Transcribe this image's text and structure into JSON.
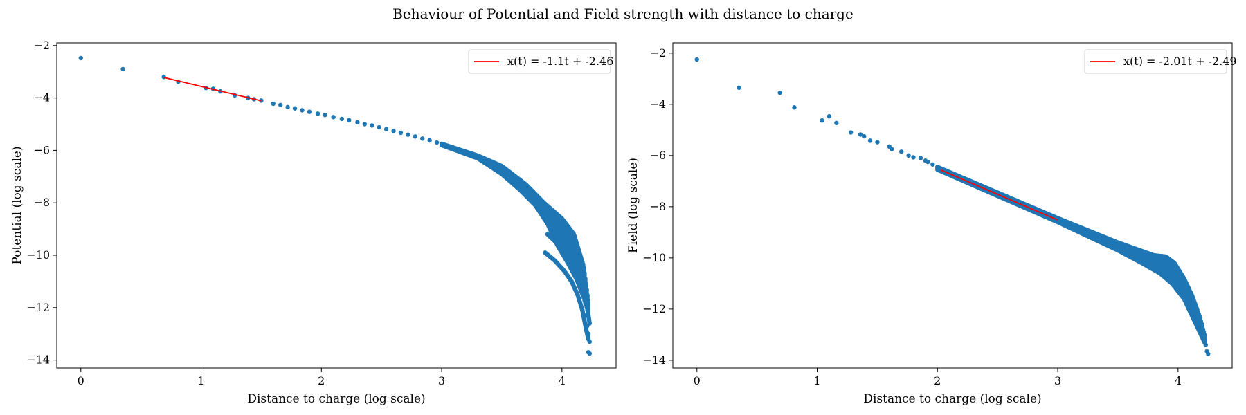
{
  "figure": {
    "suptitle": "Behaviour of Potential and Field strength with distance to charge"
  },
  "chart_data": [
    {
      "type": "scatter",
      "xlabel": "Distance to charge (log scale)",
      "ylabel": "Potential (log scale)",
      "xlim": [
        -0.2,
        4.45
      ],
      "ylim": [
        -14.3,
        -1.9
      ],
      "xticks": [
        0,
        1,
        2,
        3,
        4
      ],
      "yticks": [
        -14,
        -12,
        -10,
        -8,
        -6,
        -4,
        -2
      ],
      "legend_position": "top-right",
      "point_color": "#1f77b4",
      "fit_color": "#ff0000",
      "isolated_points": [
        [
          0,
          -2.48
        ],
        [
          0.35,
          -2.9
        ],
        [
          0.69,
          -3.2
        ],
        [
          0.81,
          -3.38
        ],
        [
          1.04,
          -3.62
        ],
        [
          1.1,
          -3.65
        ],
        [
          1.16,
          -3.75
        ],
        [
          1.28,
          -3.9
        ],
        [
          1.39,
          -4.0
        ],
        [
          1.44,
          -4.05
        ],
        [
          1.5,
          -4.1
        ],
        [
          1.6,
          -4.22
        ],
        [
          1.66,
          -4.27
        ],
        [
          1.72,
          -4.35
        ],
        [
          1.78,
          -4.4
        ],
        [
          1.84,
          -4.47
        ],
        [
          1.9,
          -4.53
        ],
        [
          1.97,
          -4.6
        ],
        [
          2.03,
          -4.65
        ],
        [
          2.1,
          -4.73
        ],
        [
          2.17,
          -4.8
        ],
        [
          2.23,
          -4.85
        ],
        [
          2.3,
          -4.93
        ],
        [
          2.36,
          -5.0
        ],
        [
          2.42,
          -5.05
        ],
        [
          2.48,
          -5.12
        ],
        [
          2.54,
          -5.19
        ],
        [
          2.6,
          -5.26
        ],
        [
          2.66,
          -5.33
        ],
        [
          2.72,
          -5.4
        ],
        [
          2.78,
          -5.47
        ],
        [
          2.84,
          -5.55
        ],
        [
          2.9,
          -5.62
        ],
        [
          2.96,
          -5.7
        ],
        [
          3.0,
          -5.75
        ]
      ],
      "main_band": {
        "upper": [
          [
            3.0,
            -5.75
          ],
          [
            3.3,
            -6.2
          ],
          [
            3.5,
            -6.6
          ],
          [
            3.7,
            -7.3
          ],
          [
            3.85,
            -8.0
          ],
          [
            4.0,
            -8.6
          ],
          [
            4.1,
            -9.2
          ],
          [
            4.18,
            -10.4
          ],
          [
            4.22,
            -11.8
          ]
        ],
        "lower": [
          [
            3.0,
            -5.8
          ],
          [
            3.3,
            -6.3
          ],
          [
            3.5,
            -6.9
          ],
          [
            3.65,
            -7.5
          ],
          [
            3.78,
            -8.1
          ],
          [
            3.88,
            -8.8
          ],
          [
            3.96,
            -9.6
          ],
          [
            4.05,
            -10.3
          ],
          [
            4.12,
            -10.9
          ],
          [
            4.18,
            -11.6
          ],
          [
            4.22,
            -12.2
          ]
        ]
      },
      "branches": [
        [
          [
            3.88,
            -9.2
          ],
          [
            3.95,
            -9.5
          ],
          [
            4.02,
            -9.8
          ],
          [
            4.08,
            -10.2
          ],
          [
            4.14,
            -10.7
          ],
          [
            4.18,
            -11.3
          ],
          [
            4.21,
            -12.0
          ],
          [
            4.23,
            -12.6
          ]
        ],
        [
          [
            3.86,
            -9.9
          ],
          [
            3.94,
            -10.2
          ],
          [
            4.02,
            -10.6
          ],
          [
            4.08,
            -11.0
          ],
          [
            4.13,
            -11.5
          ],
          [
            4.17,
            -12.1
          ],
          [
            4.2,
            -12.8
          ],
          [
            4.22,
            -13.2
          ]
        ]
      ],
      "tail_points": [
        [
          4.2,
          -12.3
        ],
        [
          4.21,
          -12.7
        ],
        [
          4.22,
          -13.0
        ],
        [
          4.23,
          -13.3
        ],
        [
          4.22,
          -13.7
        ],
        [
          4.23,
          -13.75
        ]
      ],
      "fit": {
        "label": "x(t) = -1.1t + -2.46",
        "slope": -1.1,
        "intercept": -2.46,
        "x_range": [
          0.69,
          1.5
        ]
      }
    },
    {
      "type": "scatter",
      "xlabel": "Distance to charge (log scale)",
      "ylabel": "Field (log scale)",
      "xlim": [
        -0.2,
        4.45
      ],
      "ylim": [
        -14.3,
        -1.6
      ],
      "xticks": [
        0,
        1,
        2,
        3,
        4
      ],
      "yticks": [
        -14,
        -12,
        -10,
        -8,
        -6,
        -4,
        -2
      ],
      "legend_position": "top-right",
      "point_color": "#1f77b4",
      "fit_color": "#ff0000",
      "isolated_points": [
        [
          0,
          -2.25
        ],
        [
          0.35,
          -3.35
        ],
        [
          0.69,
          -3.55
        ],
        [
          0.81,
          -4.12
        ],
        [
          1.04,
          -4.63
        ],
        [
          1.1,
          -4.47
        ],
        [
          1.16,
          -4.73
        ],
        [
          1.28,
          -5.1
        ],
        [
          1.36,
          -5.18
        ],
        [
          1.39,
          -5.25
        ],
        [
          1.44,
          -5.42
        ],
        [
          1.5,
          -5.48
        ],
        [
          1.6,
          -5.65
        ],
        [
          1.62,
          -5.75
        ],
        [
          1.7,
          -5.85
        ],
        [
          1.76,
          -6.0
        ],
        [
          1.8,
          -6.07
        ],
        [
          1.86,
          -6.1
        ],
        [
          1.9,
          -6.2
        ],
        [
          1.92,
          -6.25
        ],
        [
          1.96,
          -6.35
        ],
        [
          2.0,
          -6.45
        ]
      ],
      "main_band": {
        "upper": [
          [
            2.0,
            -6.45
          ],
          [
            3.0,
            -8.45
          ],
          [
            3.5,
            -9.4
          ],
          [
            3.8,
            -9.9
          ],
          [
            3.9,
            -9.95
          ],
          [
            3.97,
            -10.2
          ],
          [
            4.05,
            -10.8
          ],
          [
            4.12,
            -11.5
          ],
          [
            4.18,
            -12.3
          ],
          [
            4.22,
            -13.0
          ]
        ],
        "lower": [
          [
            2.0,
            -6.55
          ],
          [
            3.0,
            -8.6
          ],
          [
            3.5,
            -9.7
          ],
          [
            3.7,
            -10.2
          ],
          [
            3.85,
            -10.6
          ],
          [
            3.95,
            -11.0
          ],
          [
            4.05,
            -11.6
          ],
          [
            4.12,
            -12.3
          ],
          [
            4.18,
            -12.9
          ],
          [
            4.22,
            -13.3
          ]
        ]
      },
      "branches": [],
      "tail_points": [
        [
          4.2,
          -12.6
        ],
        [
          4.21,
          -12.9
        ],
        [
          4.22,
          -13.1
        ],
        [
          4.23,
          -13.4
        ],
        [
          4.24,
          -13.65
        ],
        [
          4.25,
          -13.75
        ]
      ],
      "fit": {
        "label": "x(t) = -2.01t + -2.49",
        "slope": -2.01,
        "intercept": -2.49,
        "x_range": [
          2.03,
          3.0
        ]
      }
    }
  ]
}
